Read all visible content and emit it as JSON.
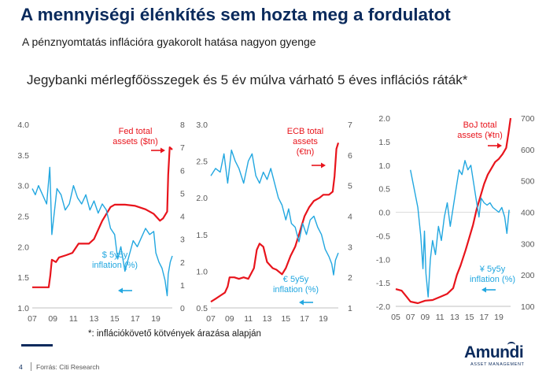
{
  "header": {
    "title": "A mennyiségi élénkítés sem hozta meg a fordulatot",
    "subtitle": "A pénznyomtatás inflációra gyakorolt hatása nagyon gyenge"
  },
  "chart_heading": "Jegybanki mérlegfőösszegek és 5 év múlva várható 5 éves inflációs ráták*",
  "footnote": "*: inflációkövető kötvények árazása alapján",
  "footer": {
    "page": "4",
    "source": "Forrás: Citi Research"
  },
  "logo": {
    "name": "Amundi",
    "tagline": "ASSET MANAGEMENT"
  },
  "colors": {
    "assets": "#e8141c",
    "inflation": "#22a7e0",
    "title": "#0a2a5c"
  },
  "chart_data": [
    {
      "type": "line",
      "x_ticks": [
        "07",
        "09",
        "11",
        "13",
        "15",
        "17",
        "19"
      ],
      "x_range": [
        2007,
        2020.6
      ],
      "y_left": {
        "ticks": [
          "1.0",
          "1.5",
          "2.0",
          "2.5",
          "3.0",
          "3.5",
          "4.0"
        ],
        "range": [
          1.0,
          4.0
        ]
      },
      "y_right": {
        "ticks": [
          "0",
          "1",
          "2",
          "3",
          "4",
          "5",
          "6",
          "7",
          "8"
        ],
        "range": [
          0,
          8
        ]
      },
      "assets_label": [
        "Fed total",
        "assets ($tn)"
      ],
      "inflation_label": [
        "$ 5y5y",
        "inflation (%)"
      ],
      "assets_arrow": "right",
      "inflation_arrow": "left",
      "series": [
        {
          "key": "assets",
          "axis": "right",
          "x": [
            2007.0,
            2008.6,
            2008.75,
            2008.9,
            2009.3,
            2009.6,
            2010.3,
            2010.9,
            2011.5,
            2012.5,
            2013.0,
            2013.8,
            2014.6,
            2015.0,
            2016.0,
            2017.0,
            2018.0,
            2018.8,
            2019.4,
            2019.7,
            2020.1,
            2020.2,
            2020.35,
            2020.6
          ],
          "y": [
            0.9,
            0.9,
            1.4,
            2.1,
            2.0,
            2.2,
            2.3,
            2.4,
            2.8,
            2.8,
            3.0,
            3.8,
            4.4,
            4.5,
            4.5,
            4.45,
            4.3,
            4.1,
            3.8,
            3.9,
            4.2,
            5.8,
            7.0,
            6.9
          ]
        },
        {
          "key": "inflation",
          "axis": "left",
          "x": [
            2007.0,
            2007.3,
            2007.6,
            2008.0,
            2008.4,
            2008.7,
            2008.9,
            2009.1,
            2009.4,
            2009.8,
            2010.2,
            2010.6,
            2011.0,
            2011.4,
            2011.8,
            2012.2,
            2012.6,
            2013.0,
            2013.4,
            2013.8,
            2014.2,
            2014.6,
            2015.0,
            2015.3,
            2015.6,
            2016.0,
            2016.4,
            2016.8,
            2017.2,
            2017.6,
            2018.0,
            2018.4,
            2018.8,
            2019.0,
            2019.3,
            2019.6,
            2019.9,
            2020.1,
            2020.2,
            2020.4,
            2020.6
          ],
          "y": [
            2.95,
            2.85,
            3.0,
            2.85,
            2.7,
            3.3,
            2.2,
            2.5,
            2.95,
            2.85,
            2.6,
            2.7,
            3.0,
            2.8,
            2.7,
            2.85,
            2.6,
            2.75,
            2.55,
            2.7,
            2.6,
            2.3,
            2.2,
            1.8,
            2.0,
            1.6,
            1.85,
            2.1,
            2.0,
            2.15,
            2.3,
            2.2,
            2.25,
            1.9,
            1.75,
            1.65,
            1.45,
            1.2,
            1.55,
            1.75,
            1.85
          ]
        }
      ]
    },
    {
      "type": "line",
      "x_ticks": [
        "07",
        "09",
        "11",
        "13",
        "15",
        "17",
        "19"
      ],
      "x_range": [
        2007,
        2020.6
      ],
      "y_left": {
        "ticks": [
          "0.5",
          "1.0",
          "1.5",
          "2.0",
          "2.5",
          "3.0"
        ],
        "range": [
          0.5,
          3.0
        ]
      },
      "y_right": {
        "ticks": [
          "1",
          "2",
          "3",
          "4",
          "5",
          "6",
          "7"
        ],
        "range": [
          1,
          7
        ]
      },
      "assets_label": [
        "ECB total",
        "assets",
        "(€tn)"
      ],
      "inflation_label": [
        "€ 5y5y",
        "inflation (%)"
      ],
      "assets_arrow": "right",
      "inflation_arrow": "left",
      "series": [
        {
          "key": "assets",
          "axis": "right",
          "x": [
            2007.0,
            2007.5,
            2008.0,
            2008.5,
            2008.8,
            2009.0,
            2009.5,
            2010.0,
            2010.5,
            2011.0,
            2011.6,
            2011.9,
            2012.2,
            2012.6,
            2013.0,
            2013.6,
            2014.0,
            2014.6,
            2015.0,
            2015.5,
            2016.0,
            2016.5,
            2017.0,
            2017.5,
            2018.0,
            2018.6,
            2019.0,
            2019.6,
            2020.0,
            2020.2,
            2020.4,
            2020.6
          ],
          "y": [
            1.2,
            1.3,
            1.4,
            1.5,
            1.7,
            2.0,
            2.0,
            1.95,
            2.0,
            1.95,
            2.3,
            2.9,
            3.1,
            3.0,
            2.5,
            2.3,
            2.25,
            2.1,
            2.3,
            2.7,
            3.0,
            3.5,
            4.0,
            4.3,
            4.5,
            4.6,
            4.7,
            4.7,
            4.8,
            5.3,
            6.2,
            6.4
          ]
        },
        {
          "key": "inflation",
          "axis": "left",
          "x": [
            2007.0,
            2007.5,
            2008.0,
            2008.4,
            2008.8,
            2009.2,
            2009.6,
            2010.0,
            2010.5,
            2011.0,
            2011.4,
            2011.8,
            2012.2,
            2012.6,
            2013.0,
            2013.4,
            2013.8,
            2014.2,
            2014.6,
            2015.0,
            2015.3,
            2015.6,
            2016.0,
            2016.4,
            2016.8,
            2017.2,
            2017.6,
            2018.0,
            2018.4,
            2018.8,
            2019.2,
            2019.6,
            2019.9,
            2020.1,
            2020.3,
            2020.6
          ],
          "y": [
            2.3,
            2.4,
            2.35,
            2.6,
            2.2,
            2.65,
            2.5,
            2.4,
            2.2,
            2.5,
            2.6,
            2.3,
            2.2,
            2.35,
            2.25,
            2.4,
            2.2,
            2.0,
            1.9,
            1.7,
            1.85,
            1.65,
            1.6,
            1.4,
            1.65,
            1.5,
            1.7,
            1.75,
            1.6,
            1.5,
            1.3,
            1.2,
            1.1,
            0.95,
            1.15,
            1.25
          ]
        }
      ]
    },
    {
      "type": "line",
      "x_ticks": [
        "05",
        "07",
        "09",
        "11",
        "13",
        "15",
        "17",
        "19"
      ],
      "x_range": [
        2005,
        2020.6
      ],
      "y_left": {
        "ticks": [
          "-2.0",
          "-1.5",
          "-1.0",
          "-0.5",
          "0.0",
          "0.5",
          "1.0",
          "1.5",
          "2.0"
        ],
        "range": [
          -2.0,
          2.0
        ]
      },
      "y_right": {
        "ticks": [
          "100",
          "200",
          "300",
          "400",
          "500",
          "600",
          "700"
        ],
        "range": [
          100,
          700
        ]
      },
      "assets_label": [
        "BoJ total",
        "assets (¥tn)"
      ],
      "inflation_label": [
        "¥ 5y5y",
        "inflation (%)"
      ],
      "assets_arrow": "right",
      "inflation_arrow": "left",
      "series": [
        {
          "key": "assets",
          "axis": "right",
          "x": [
            2005.0,
            2005.8,
            2006.5,
            2007.0,
            2008.0,
            2009.0,
            2010.0,
            2011.0,
            2012.0,
            2012.8,
            2013.3,
            2013.8,
            2014.5,
            2015.0,
            2015.5,
            2016.0,
            2016.5,
            2017.0,
            2017.5,
            2018.0,
            2018.5,
            2019.0,
            2019.5,
            2020.0,
            2020.3,
            2020.6
          ],
          "y": [
            155,
            150,
            130,
            115,
            110,
            118,
            120,
            130,
            140,
            158,
            200,
            230,
            280,
            320,
            360,
            410,
            450,
            490,
            520,
            540,
            560,
            570,
            585,
            605,
            650,
            700
          ]
        },
        {
          "key": "inflation",
          "axis": "left",
          "x": [
            2007.0,
            2007.5,
            2008.0,
            2008.4,
            2008.7,
            2008.9,
            2009.1,
            2009.4,
            2009.7,
            2010.0,
            2010.4,
            2010.8,
            2011.2,
            2011.6,
            2012.0,
            2012.4,
            2012.8,
            2013.2,
            2013.6,
            2014.0,
            2014.4,
            2014.8,
            2015.2,
            2015.6,
            2016.0,
            2016.3,
            2016.6,
            2017.0,
            2017.4,
            2017.8,
            2018.2,
            2018.6,
            2019.0,
            2019.4,
            2019.8,
            2020.1,
            2020.4
          ],
          "y": [
            0.9,
            0.5,
            0.1,
            -0.5,
            -1.2,
            -0.4,
            -1.3,
            -1.8,
            -1.0,
            -0.6,
            -0.9,
            -0.3,
            -0.6,
            -0.1,
            0.2,
            -0.3,
            0.1,
            0.5,
            0.9,
            0.8,
            1.1,
            0.9,
            1.0,
            0.6,
            0.2,
            -0.1,
            0.3,
            0.2,
            0.15,
            0.2,
            0.1,
            0.05,
            0.0,
            0.1,
            -0.1,
            -0.45,
            0.05
          ]
        }
      ]
    }
  ]
}
